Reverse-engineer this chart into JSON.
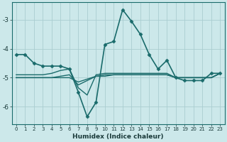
{
  "xlabel": "Humidex (Indice chaleur)",
  "ylabel": "",
  "bg_color": "#cce8ea",
  "grid_color": "#aacdd0",
  "line_color": "#1a6b6b",
  "xlim": [
    -0.5,
    23.5
  ],
  "ylim": [
    -6.6,
    -2.4
  ],
  "yticks": [
    -6,
    -5,
    -4,
    -3
  ],
  "xticks": [
    0,
    1,
    2,
    3,
    4,
    5,
    6,
    7,
    8,
    9,
    10,
    11,
    12,
    13,
    14,
    15,
    16,
    17,
    18,
    19,
    20,
    21,
    22,
    23
  ],
  "series": [
    {
      "x": [
        0,
        1,
        2,
        3,
        4,
        5,
        6,
        7,
        8,
        9,
        10,
        11,
        12,
        13,
        14,
        15,
        16,
        17,
        18,
        19,
        20,
        21,
        22,
        23
      ],
      "y": [
        -4.2,
        -4.2,
        -4.5,
        -4.6,
        -4.6,
        -4.6,
        -4.7,
        -5.5,
        -6.35,
        -5.85,
        -3.85,
        -3.75,
        -2.65,
        -3.05,
        -3.5,
        -4.2,
        -4.7,
        -4.4,
        -5.0,
        -5.1,
        -5.1,
        -5.1,
        -4.85,
        -4.85
      ],
      "marker": "D",
      "lw": 1.2
    },
    {
      "x": [
        0,
        1,
        2,
        3,
        4,
        5,
        6,
        7,
        8,
        9,
        10,
        11,
        12,
        13,
        14,
        15,
        16,
        17,
        18,
        19,
        20,
        21,
        22,
        23
      ],
      "y": [
        -4.9,
        -4.9,
        -4.9,
        -4.9,
        -4.85,
        -4.75,
        -4.7,
        -5.35,
        -5.6,
        -4.9,
        -4.85,
        -4.85,
        -4.85,
        -4.85,
        -4.85,
        -4.85,
        -4.85,
        -4.85,
        -5.0,
        -5.0,
        -5.0,
        -5.0,
        -5.0,
        -4.85
      ],
      "marker": null,
      "lw": 1.0
    },
    {
      "x": [
        0,
        1,
        2,
        3,
        4,
        5,
        6,
        7,
        8,
        9,
        10,
        11,
        12,
        13,
        14,
        15,
        16,
        17,
        18,
        19,
        20,
        21,
        22,
        23
      ],
      "y": [
        -5.0,
        -5.0,
        -5.0,
        -5.0,
        -5.0,
        -5.0,
        -5.0,
        -5.15,
        -5.05,
        -4.95,
        -4.95,
        -4.9,
        -4.9,
        -4.9,
        -4.9,
        -4.9,
        -4.9,
        -4.9,
        -5.0,
        -5.0,
        -5.0,
        -5.0,
        -5.0,
        -4.85
      ],
      "marker": null,
      "lw": 1.0
    },
    {
      "x": [
        0,
        1,
        2,
        3,
        4,
        5,
        6,
        7,
        8,
        9,
        10,
        11,
        12,
        13,
        14,
        15,
        16,
        17,
        18,
        19,
        20,
        21,
        22,
        23
      ],
      "y": [
        -5.0,
        -5.0,
        -5.0,
        -5.0,
        -5.0,
        -4.95,
        -4.9,
        -5.25,
        -5.1,
        -4.95,
        -4.9,
        -4.9,
        -4.9,
        -4.9,
        -4.9,
        -4.9,
        -4.9,
        -4.9,
        -5.0,
        -5.0,
        -5.0,
        -5.0,
        -5.0,
        -4.85
      ],
      "marker": null,
      "lw": 1.0
    }
  ]
}
